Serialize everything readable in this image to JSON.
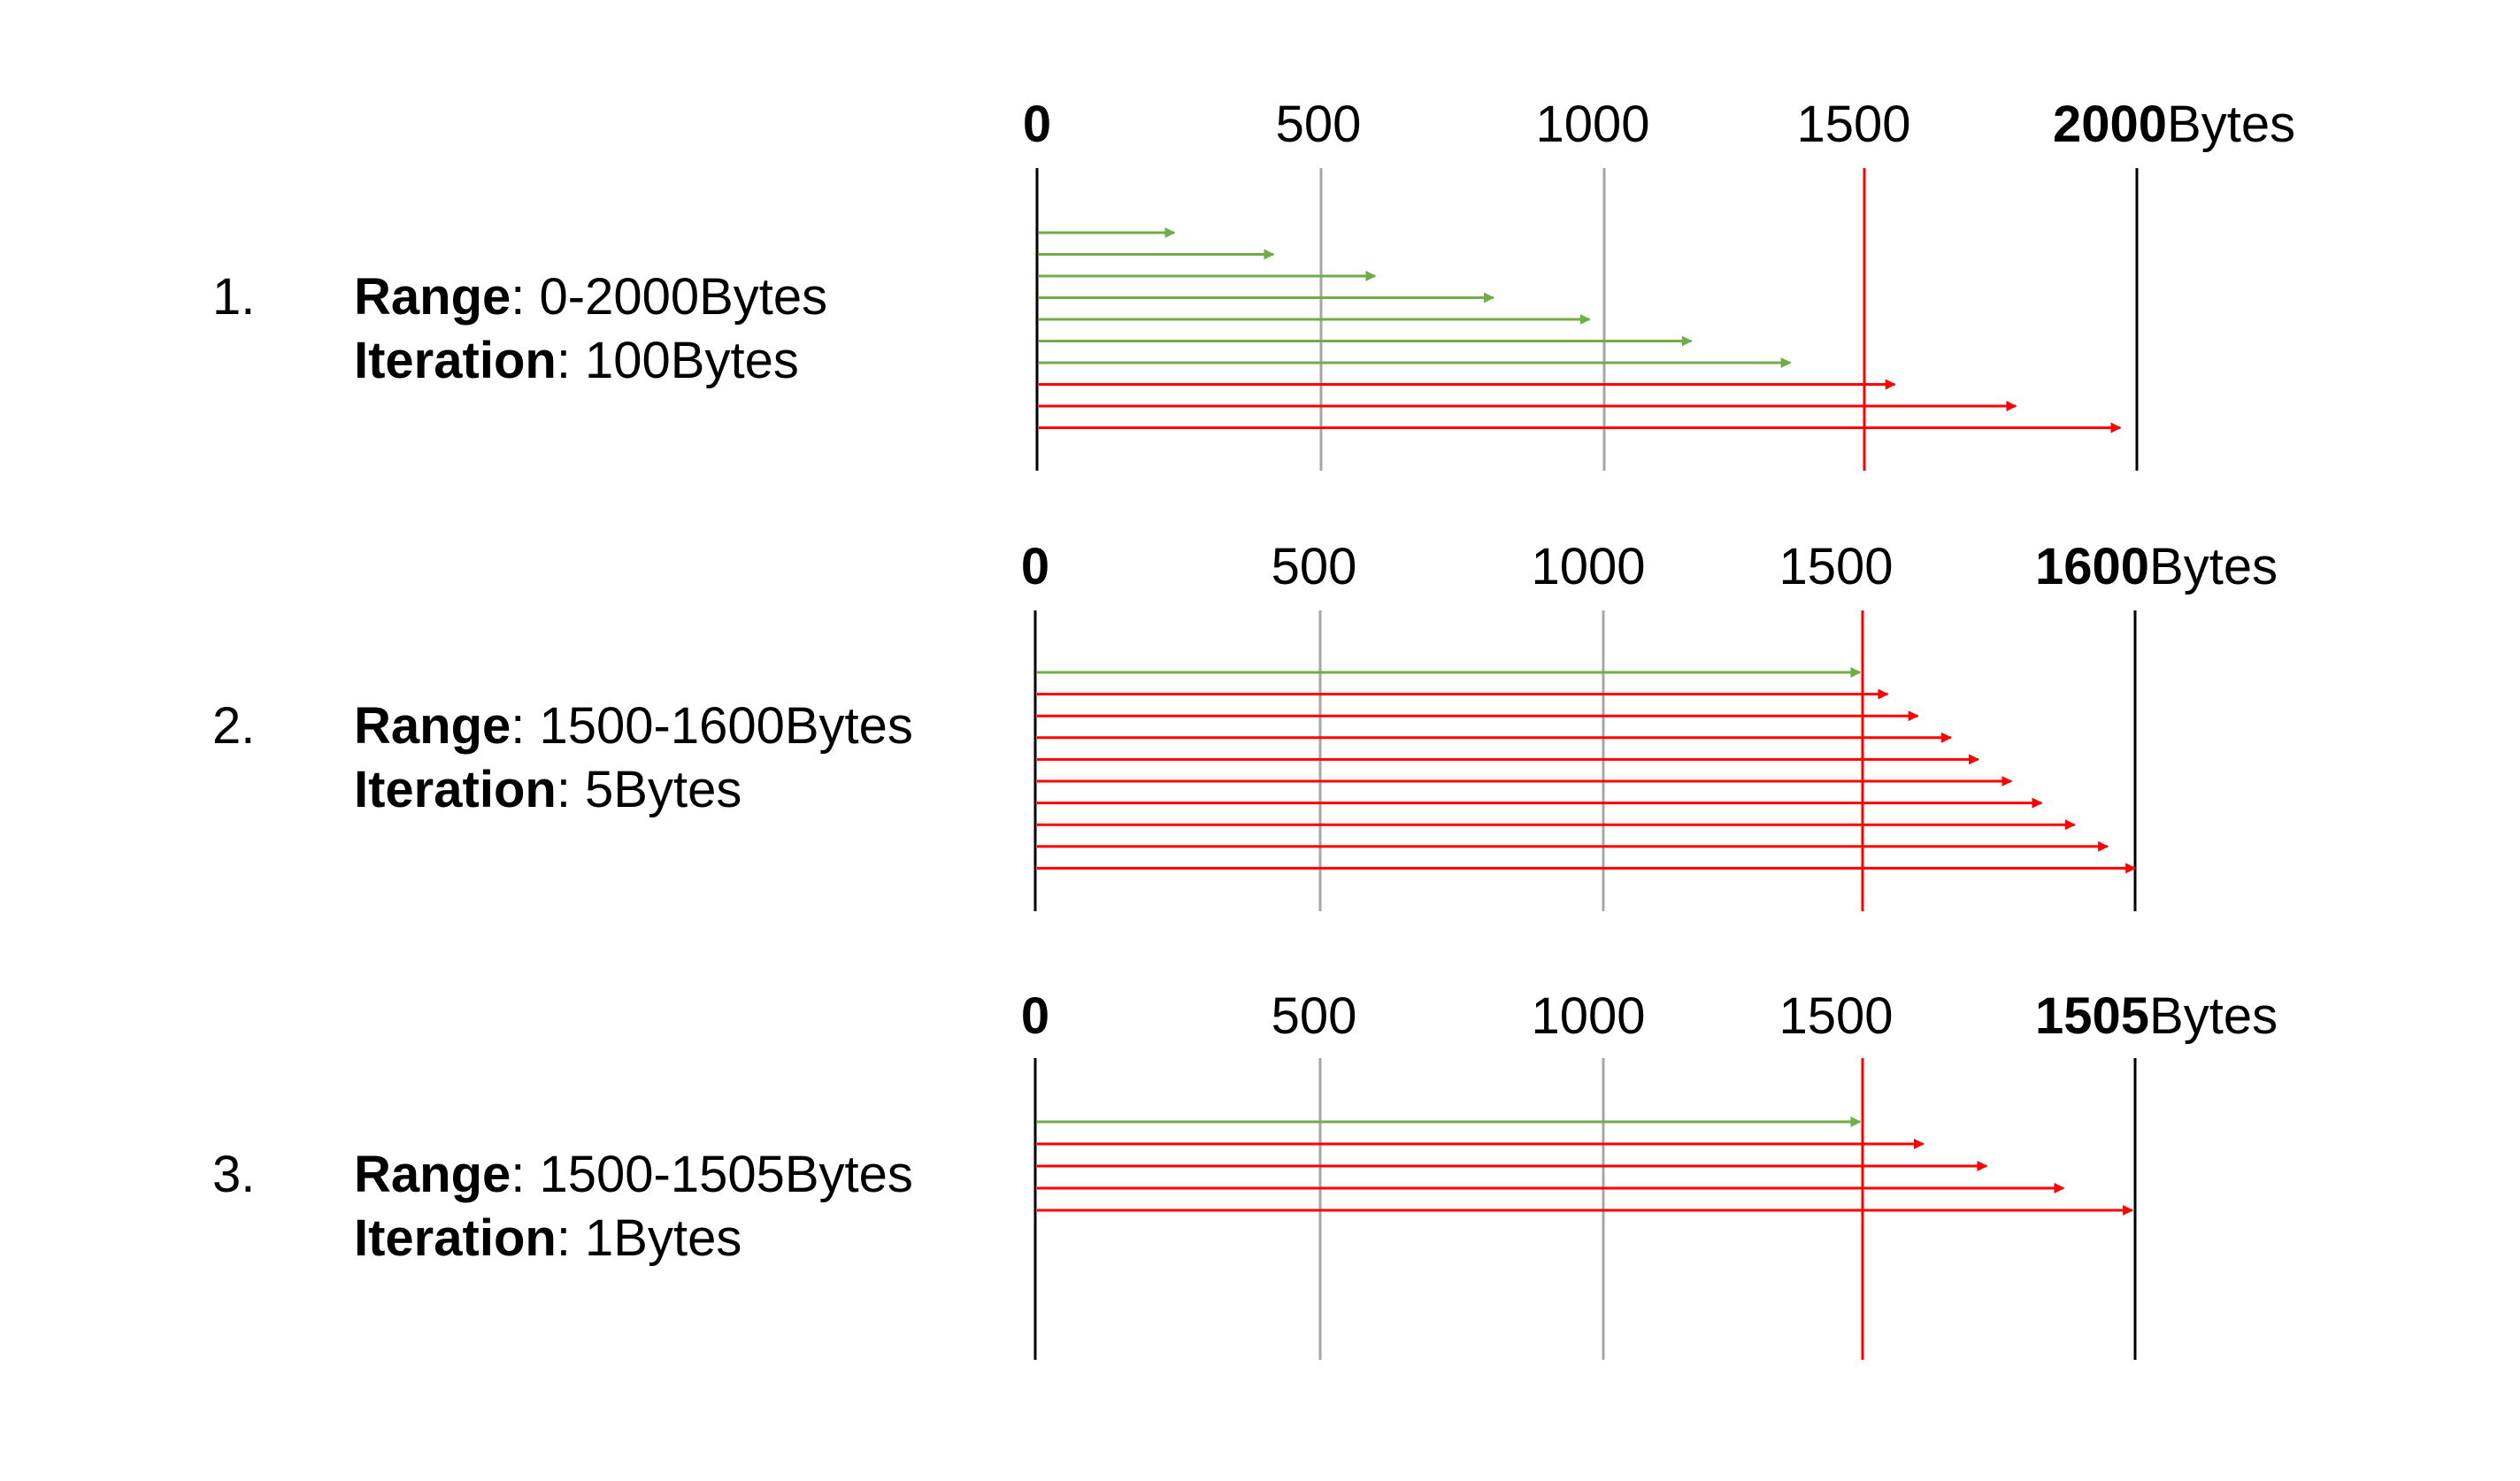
{
  "colors": {
    "fits": "#70AD47",
    "exceeds": "#FF0000",
    "gridline": "#A6A6A6",
    "axis_line": "#000000",
    "text": "#000000"
  },
  "panels": [
    {
      "number": "1.",
      "range_label": "Range",
      "range_value": ": 0-2000Bytes",
      "iteration_label": "Iteration",
      "iteration_value": ": 100Bytes",
      "axis": {
        "start_label": "0",
        "tick_labels": [
          "500",
          "1000",
          "1500"
        ],
        "end_value": "2000",
        "unit": "Bytes",
        "gridline_values": [
          500,
          1000
        ],
        "threshold_value": 1500,
        "end": 2000
      },
      "arrows": [
        {
          "length": 250,
          "exceeds": false
        },
        {
          "length": 430,
          "exceeds": false
        },
        {
          "length": 615,
          "exceeds": false
        },
        {
          "length": 830,
          "exceeds": false
        },
        {
          "length": 1005,
          "exceeds": false
        },
        {
          "length": 1190,
          "exceeds": false
        },
        {
          "length": 1370,
          "exceeds": false
        },
        {
          "length": 1560,
          "exceeds": true
        },
        {
          "length": 1780,
          "exceeds": true
        },
        {
          "length": 1970,
          "exceeds": true
        }
      ]
    },
    {
      "number": "2.",
      "range_label": "Range",
      "range_value": ": 1500-1600Bytes",
      "iteration_label": "Iteration",
      "iteration_value": ": 5Bytes",
      "axis": {
        "start_label": "0",
        "tick_labels": [
          "500",
          "1000",
          "1500"
        ],
        "end_value": "1600",
        "unit": "Bytes",
        "gridline_values": [
          500,
          1000
        ],
        "threshold_value": 1500,
        "end": 2000
      },
      "arrows": [
        {
          "length": 1500,
          "exceeds": false
        },
        {
          "length": 1550,
          "exceeds": true
        },
        {
          "length": 1605,
          "exceeds": true
        },
        {
          "length": 1665,
          "exceeds": true
        },
        {
          "length": 1715,
          "exceeds": true
        },
        {
          "length": 1775,
          "exceeds": true
        },
        {
          "length": 1830,
          "exceeds": true
        },
        {
          "length": 1890,
          "exceeds": true
        },
        {
          "length": 1950,
          "exceeds": true
        },
        {
          "length": 2000,
          "exceeds": true
        }
      ]
    },
    {
      "number": "3.",
      "range_label": "Range",
      "range_value": ": 1500-1505Bytes",
      "iteration_label": "Iteration",
      "iteration_value": ": 1Bytes",
      "axis": {
        "start_label": "0",
        "tick_labels": [
          "500",
          "1000",
          "1500"
        ],
        "end_value": "1505",
        "unit": "Bytes",
        "gridline_values": [
          500,
          1000
        ],
        "threshold_value": 1500,
        "end": 2000
      },
      "arrows": [
        {
          "length": 1500,
          "exceeds": false
        },
        {
          "length": 1615,
          "exceeds": true
        },
        {
          "length": 1730,
          "exceeds": true
        },
        {
          "length": 1870,
          "exceeds": true
        },
        {
          "length": 1995,
          "exceeds": true
        }
      ]
    }
  ]
}
